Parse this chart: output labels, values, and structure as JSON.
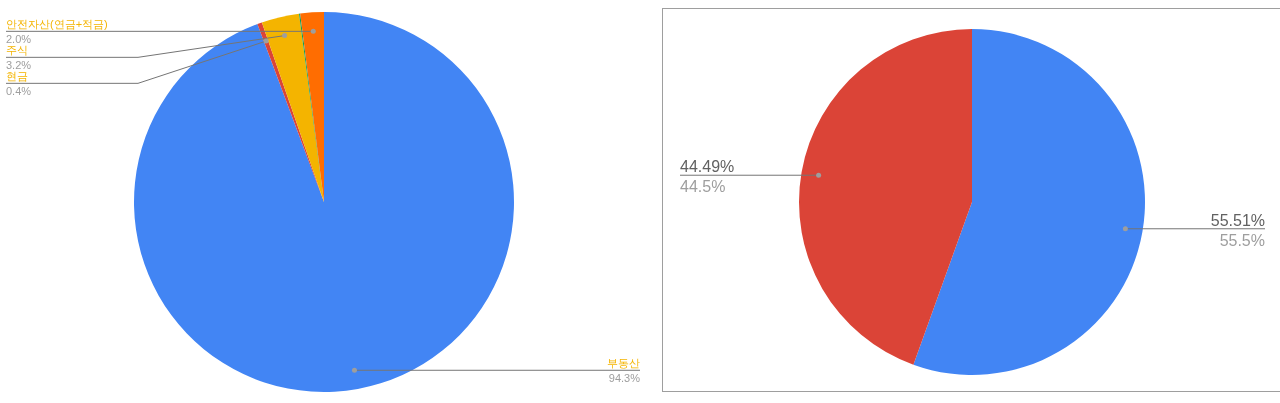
{
  "chart_data": [
    {
      "type": "pie",
      "categories": [
        "부동산",
        "현금",
        "주식",
        null,
        "안전자산(연금+적금)"
      ],
      "values": [
        94.3,
        0.4,
        3.2,
        0.1,
        2.0
      ],
      "colors": [
        "#4285f4",
        "#db4437",
        "#f4b400",
        "#0f9d58",
        "#ff6d01"
      ],
      "value_labels": [
        "94.3%",
        "0.4%",
        "3.2%",
        null,
        "2.0%"
      ]
    },
    {
      "type": "pie",
      "categories": [
        "55.51%",
        "44.49%"
      ],
      "values": [
        55.5,
        44.5
      ],
      "colors": [
        "#4285f4",
        "#db4437"
      ],
      "value_labels": [
        "55.5%",
        "44.5%"
      ]
    }
  ]
}
